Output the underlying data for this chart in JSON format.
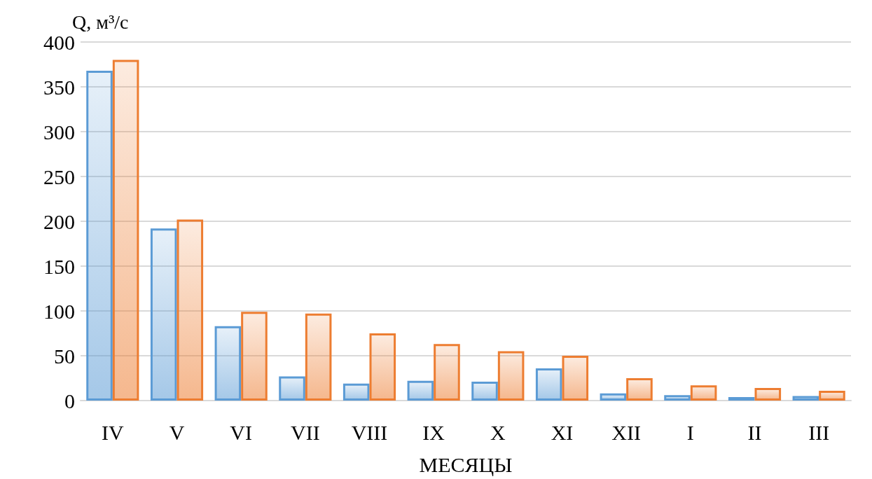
{
  "chart_data": {
    "type": "bar",
    "ylabel": "Q, м³/с",
    "xlabel": "МЕСЯЦЫ",
    "categories": [
      "IV",
      "V",
      "VI",
      "VII",
      "VIII",
      "IX",
      "X",
      "XI",
      "XII",
      "I",
      "II",
      "III"
    ],
    "series": [
      {
        "color": "#5b9bd5",
        "values": [
          368,
          192,
          83,
          27,
          19,
          22,
          21,
          36,
          8,
          6,
          4,
          5
        ]
      },
      {
        "color": "#ed7d31",
        "values": [
          380,
          202,
          99,
          97,
          75,
          63,
          55,
          50,
          25,
          17,
          14,
          11
        ]
      }
    ],
    "ylim": [
      0,
      400
    ],
    "yticks": [
      0,
      50,
      100,
      150,
      200,
      250,
      300,
      350,
      400
    ],
    "grid": "y"
  }
}
